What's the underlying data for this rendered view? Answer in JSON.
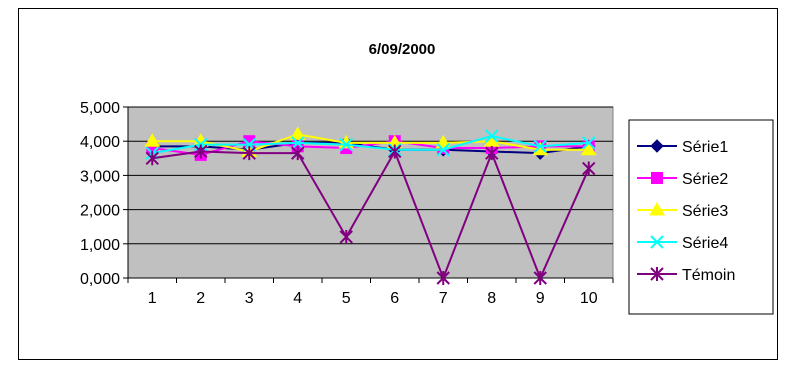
{
  "chart_data": {
    "type": "line",
    "title": "6/09/2000",
    "xlabel": "",
    "ylabel": "",
    "categories": [
      "1",
      "2",
      "3",
      "4",
      "5",
      "6",
      "7",
      "8",
      "9",
      "10"
    ],
    "ylim": [
      0,
      5
    ],
    "y_ticks": [
      "0,000",
      "1,000",
      "2,000",
      "3,000",
      "4,000",
      "5,000"
    ],
    "grid": true,
    "legend_position": "right",
    "plot_background": "#c0c0c0",
    "series": [
      {
        "name": "Série1",
        "color": "#000080",
        "marker": "diamond",
        "values": [
          3.85,
          3.85,
          3.75,
          3.95,
          3.95,
          3.75,
          3.75,
          3.7,
          3.65,
          3.85
        ]
      },
      {
        "name": "Série2",
        "color": "#ff00ff",
        "marker": "square",
        "values": [
          3.8,
          3.6,
          4.0,
          3.85,
          3.8,
          4.0,
          3.8,
          3.8,
          3.85,
          3.85
        ]
      },
      {
        "name": "Série3",
        "color": "#ffff00",
        "marker": "triangle",
        "values": [
          4.0,
          4.0,
          3.7,
          4.2,
          3.95,
          3.95,
          3.95,
          4.0,
          3.75,
          3.75
        ]
      },
      {
        "name": "Série4",
        "color": "#00ffff",
        "marker": "x",
        "values": [
          3.65,
          3.9,
          3.9,
          3.95,
          3.9,
          3.75,
          3.75,
          4.15,
          3.85,
          3.95
        ]
      },
      {
        "name": "Témoin",
        "color": "#800080",
        "marker": "star",
        "values": [
          3.5,
          3.7,
          3.65,
          3.65,
          1.2,
          3.7,
          0.0,
          3.65,
          0.0,
          3.2
        ]
      }
    ]
  }
}
